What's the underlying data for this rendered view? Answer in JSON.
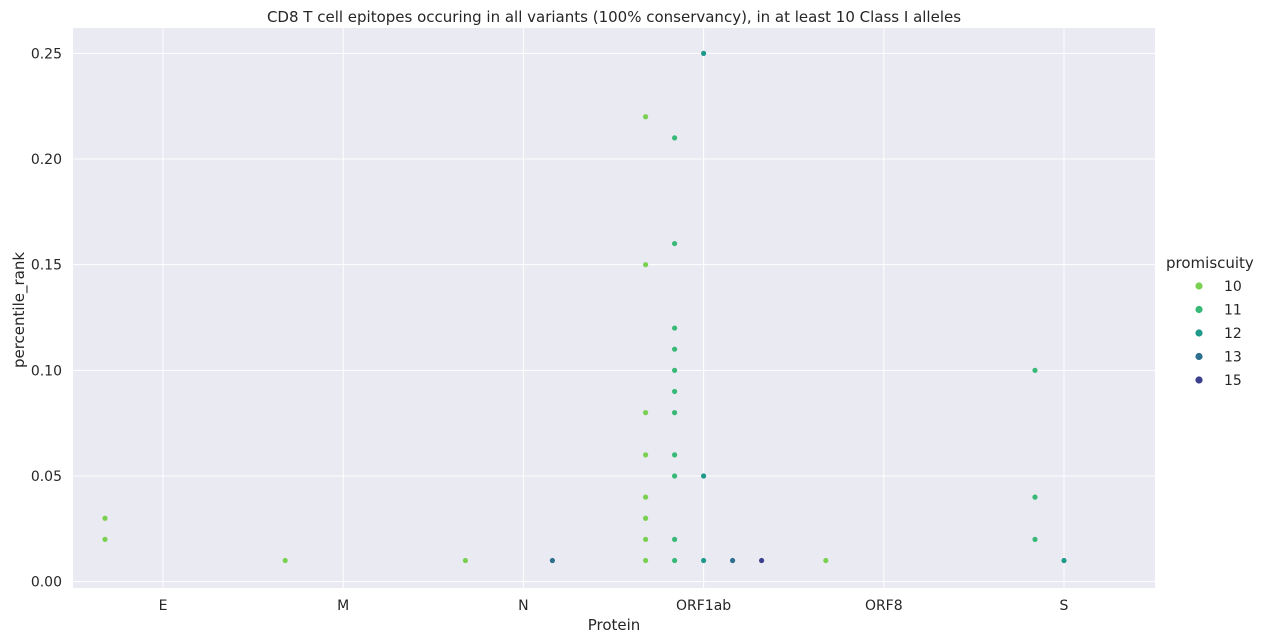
{
  "chart_data": {
    "type": "scatter",
    "title": "CD8 T cell epitopes occuring in all variants (100% conservancy), in at least 10 Class I alleles",
    "xlabel": "Protein",
    "ylabel": "percentile_rank",
    "categories": [
      "E",
      "M",
      "N",
      "ORF1ab",
      "ORF8",
      "S"
    ],
    "ylim": [
      -0.003,
      0.262
    ],
    "yticks": [
      0.0,
      0.05,
      0.1,
      0.15,
      0.2,
      0.25
    ],
    "ytick_labels": [
      "0.00",
      "0.05",
      "0.10",
      "0.15",
      "0.20",
      "0.25"
    ],
    "grid": true,
    "legend": {
      "title": "promiscuity",
      "placement": "right",
      "entries": [
        {
          "label": "10",
          "color": "#7ad151"
        },
        {
          "label": "11",
          "color": "#38b977"
        },
        {
          "label": "12",
          "color": "#1f9a8a"
        },
        {
          "label": "13",
          "color": "#2d6f8e"
        },
        {
          "label": "15",
          "color": "#3b3f8c"
        }
      ]
    },
    "series": [
      {
        "name": "10",
        "points": [
          {
            "x": "E",
            "y": 0.03
          },
          {
            "x": "E",
            "y": 0.02
          },
          {
            "x": "M",
            "y": 0.01
          },
          {
            "x": "N",
            "y": 0.01
          },
          {
            "x": "ORF1ab",
            "y": 0.22
          },
          {
            "x": "ORF1ab",
            "y": 0.15
          },
          {
            "x": "ORF1ab",
            "y": 0.08
          },
          {
            "x": "ORF1ab",
            "y": 0.06
          },
          {
            "x": "ORF1ab",
            "y": 0.04
          },
          {
            "x": "ORF1ab",
            "y": 0.03
          },
          {
            "x": "ORF1ab",
            "y": 0.02
          },
          {
            "x": "ORF1ab",
            "y": 0.01
          },
          {
            "x": "ORF8",
            "y": 0.01
          }
        ]
      },
      {
        "name": "11",
        "points": [
          {
            "x": "ORF1ab",
            "y": 0.21
          },
          {
            "x": "ORF1ab",
            "y": 0.16
          },
          {
            "x": "ORF1ab",
            "y": 0.12
          },
          {
            "x": "ORF1ab",
            "y": 0.11
          },
          {
            "x": "ORF1ab",
            "y": 0.1
          },
          {
            "x": "ORF1ab",
            "y": 0.09
          },
          {
            "x": "ORF1ab",
            "y": 0.08
          },
          {
            "x": "ORF1ab",
            "y": 0.06
          },
          {
            "x": "ORF1ab",
            "y": 0.05
          },
          {
            "x": "ORF1ab",
            "y": 0.02
          },
          {
            "x": "ORF1ab",
            "y": 0.01
          },
          {
            "x": "S",
            "y": 0.1
          },
          {
            "x": "S",
            "y": 0.04
          },
          {
            "x": "S",
            "y": 0.02
          }
        ]
      },
      {
        "name": "12",
        "points": [
          {
            "x": "ORF1ab",
            "y": 0.25
          },
          {
            "x": "ORF1ab",
            "y": 0.05
          },
          {
            "x": "ORF1ab",
            "y": 0.01
          },
          {
            "x": "S",
            "y": 0.01
          }
        ]
      },
      {
        "name": "13",
        "points": [
          {
            "x": "N",
            "y": 0.01
          },
          {
            "x": "ORF1ab",
            "y": 0.01
          }
        ]
      },
      {
        "name": "15",
        "points": [
          {
            "x": "ORF1ab",
            "y": 0.01
          }
        ]
      }
    ]
  }
}
